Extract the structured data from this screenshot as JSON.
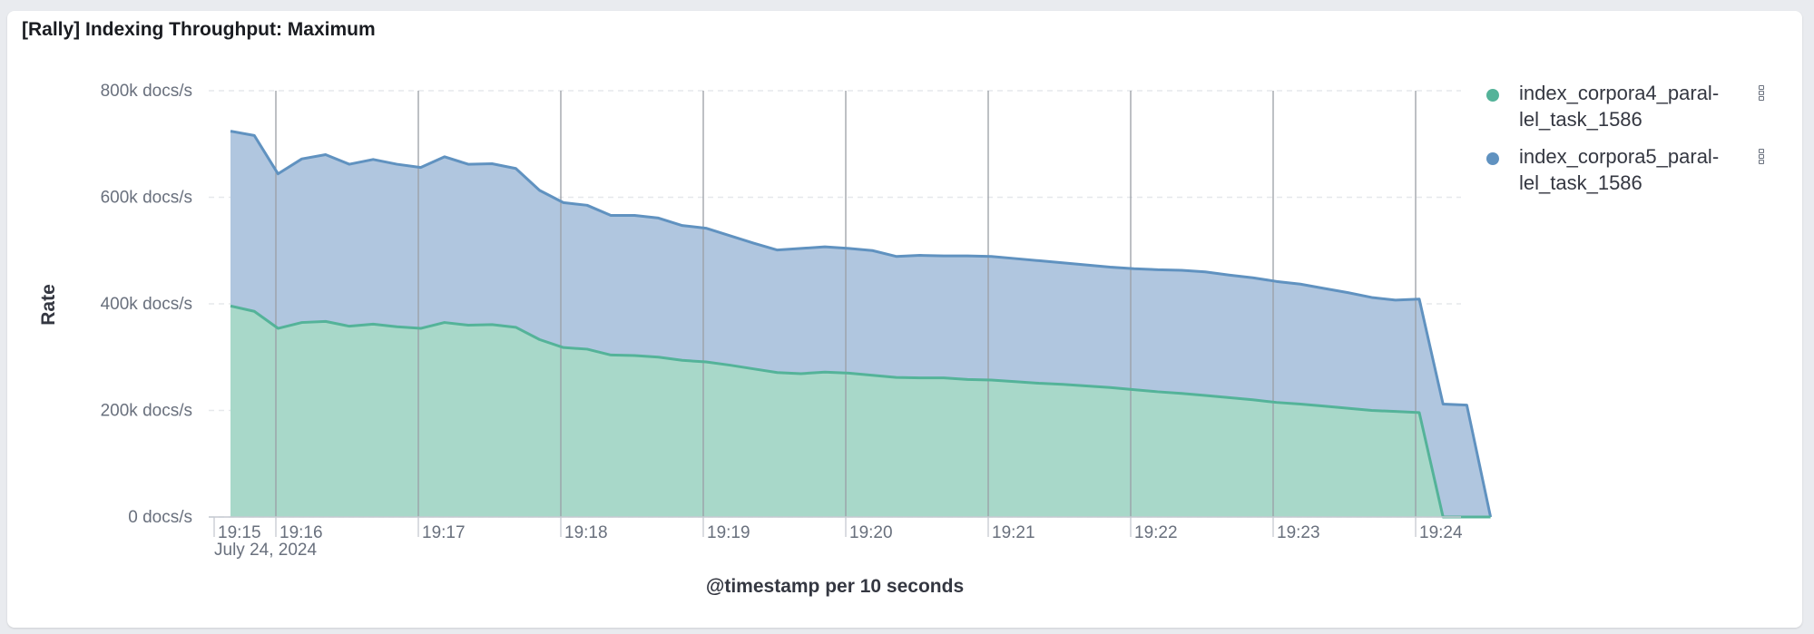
{
  "panel": {
    "title": "[Rally] Indexing Throughput: Maximum"
  },
  "colors": {
    "series_a": "#54b399",
    "series_a_fill": "#a8d8c9",
    "series_b": "#6092c0",
    "series_b_fill": "#b0c6df",
    "grid": "#e6e8ec",
    "vline": "#9a9ea5"
  },
  "chart_data": {
    "type": "area",
    "stacked": true,
    "xlabel": "@timestamp per 10 seconds",
    "ylabel": "Rate",
    "ylim": [
      0,
      800000
    ],
    "y_ticks": [
      0,
      200000,
      400000,
      600000,
      800000
    ],
    "y_tick_labels": [
      "0 docs/s",
      "200k docs/s",
      "400k docs/s",
      "600k docs/s",
      "800k docs/s"
    ],
    "x_tick_labels": [
      "19:15",
      "19:16",
      "19:17",
      "19:18",
      "19:19",
      "19:20",
      "19:21",
      "19:22",
      "19:23",
      "19:24"
    ],
    "x_tick_sublabel": "July 24, 2024",
    "x_interval_seconds": 10,
    "x_start_time": "19:15:10",
    "x_timestamps": [
      "19:15:10",
      "19:15:20",
      "19:15:30",
      "19:15:40",
      "19:15:50",
      "19:16:00",
      "19:16:10",
      "19:16:20",
      "19:16:30",
      "19:16:40",
      "19:16:50",
      "19:17:00",
      "19:17:10",
      "19:17:20",
      "19:17:30",
      "19:17:40",
      "19:17:50",
      "19:18:00",
      "19:18:10",
      "19:18:20",
      "19:18:30",
      "19:18:40",
      "19:18:50",
      "19:19:00",
      "19:19:10",
      "19:19:20",
      "19:19:30",
      "19:19:40",
      "19:19:50",
      "19:20:00",
      "19:20:10",
      "19:20:20",
      "19:20:30",
      "19:20:40",
      "19:20:50",
      "19:21:00",
      "19:21:10",
      "19:21:20",
      "19:21:30",
      "19:21:40",
      "19:21:50",
      "19:22:00",
      "19:22:10",
      "19:22:20",
      "19:22:30",
      "19:22:40",
      "19:22:50",
      "19:23:00",
      "19:23:10",
      "19:23:20",
      "19:23:30",
      "19:23:40",
      "19:23:50",
      "19:24:00"
    ],
    "series": [
      {
        "name": "index_corpora4_parallel_task_1586",
        "values": [
          396000,
          386000,
          354000,
          365000,
          367000,
          358000,
          362000,
          357000,
          354000,
          365000,
          360000,
          361000,
          356000,
          333000,
          318000,
          315000,
          304000,
          303000,
          300000,
          294000,
          291000,
          285000,
          278000,
          271000,
          269000,
          272000,
          270000,
          266000,
          262000,
          261000,
          261000,
          258000,
          257000,
          254000,
          251000,
          249000,
          246000,
          243000,
          239000,
          235000,
          232000,
          228000,
          224000,
          220000,
          215000,
          212000,
          208000,
          204000,
          200000,
          198000,
          196000,
          0,
          0,
          0
        ]
      },
      {
        "name": "index_corpora5_parallel_task_1586",
        "values": [
          328000,
          330000,
          290000,
          307000,
          313000,
          304000,
          309000,
          305000,
          302000,
          311000,
          302000,
          302000,
          298000,
          280000,
          272000,
          270000,
          262000,
          263000,
          261000,
          253000,
          251000,
          243000,
          236000,
          230000,
          235000,
          235000,
          234000,
          234000,
          227000,
          230000,
          229000,
          232000,
          232000,
          231000,
          230000,
          228000,
          227000,
          226000,
          227000,
          229000,
          231000,
          232000,
          230000,
          229000,
          227000,
          225000,
          221000,
          217000,
          212000,
          209000,
          213000,
          212000,
          210000,
          0
        ]
      }
    ]
  },
  "legend": {
    "items": [
      {
        "label": "index_corpora4_paral-\nlel_task_1586"
      },
      {
        "label": "index_corpora5_paral-\nlel_task_1586"
      }
    ]
  }
}
